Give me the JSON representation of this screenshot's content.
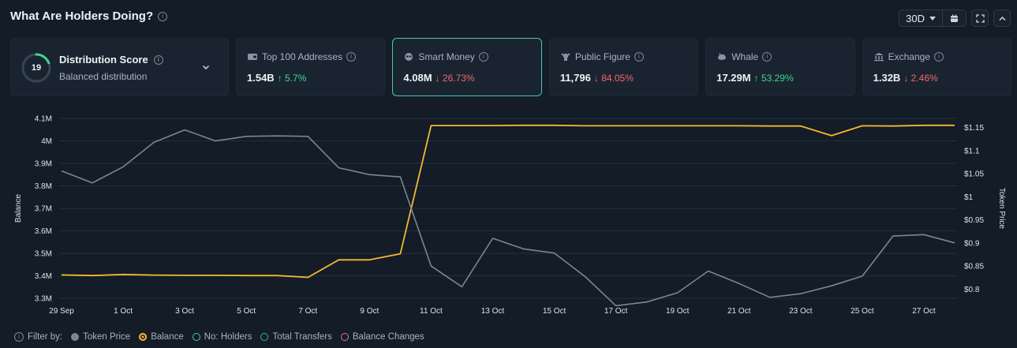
{
  "header": {
    "title": "What Are Holders Doing?",
    "range": "30D"
  },
  "score": {
    "value": "19",
    "title": "Distribution Score",
    "subtitle": "Balanced distribution",
    "fraction": 0.19
  },
  "metrics": [
    {
      "label": "Top 100 Addresses",
      "value": "1.54B",
      "change": "5.7%",
      "direction": "up",
      "icon": "wallet-icon"
    },
    {
      "label": "Smart Money",
      "value": "4.08M",
      "change": "26.73%",
      "direction": "down",
      "icon": "smart-money-icon"
    },
    {
      "label": "Public Figure",
      "value": "11,796",
      "change": "84.05%",
      "direction": "down",
      "icon": "public-figure-icon"
    },
    {
      "label": "Whale",
      "value": "17.29M",
      "change": "53.29%",
      "direction": "up",
      "icon": "whale-icon"
    },
    {
      "label": "Exchange",
      "value": "1.32B",
      "change": "2.46%",
      "direction": "down",
      "icon": "exchange-icon"
    }
  ],
  "colors": {
    "balance": "#f5b82e",
    "price": "#7c8592",
    "grid": "#233041",
    "accent": "#49c8b0",
    "up": "#3dd68c",
    "down": "#f0676b"
  },
  "chart_data": {
    "type": "line",
    "x": [
      "29 Sep",
      "30 Sep",
      "1 Oct",
      "2 Oct",
      "3 Oct",
      "4 Oct",
      "5 Oct",
      "6 Oct",
      "7 Oct",
      "8 Oct",
      "9 Oct",
      "10 Oct",
      "11 Oct",
      "12 Oct",
      "13 Oct",
      "14 Oct",
      "15 Oct",
      "16 Oct",
      "17 Oct",
      "18 Oct",
      "19 Oct",
      "20 Oct",
      "21 Oct",
      "22 Oct",
      "23 Oct",
      "24 Oct",
      "25 Oct",
      "26 Oct",
      "27 Oct",
      "28 Oct"
    ],
    "x_tick_labels": [
      "29 Sep",
      "1 Oct",
      "3 Oct",
      "5 Oct",
      "7 Oct",
      "9 Oct",
      "11 Oct",
      "13 Oct",
      "15 Oct",
      "17 Oct",
      "19 Oct",
      "21 Oct",
      "23 Oct",
      "25 Oct",
      "27 Oct"
    ],
    "y_left": {
      "label": "Balance",
      "range": [
        3.3,
        4.1
      ],
      "ticks": [
        "3.3M",
        "3.4M",
        "3.5M",
        "3.6M",
        "3.7M",
        "3.8M",
        "3.9M",
        "4M",
        "4.1M"
      ]
    },
    "y_right": {
      "label": "Token Price",
      "range": [
        0.78,
        1.17
      ],
      "ticks": [
        "$0.8",
        "$0.85",
        "$0.9",
        "$0.95",
        "$1",
        "$1.05",
        "$1.1",
        "$1.15"
      ]
    },
    "series": [
      {
        "name": "Balance",
        "axis": "left",
        "values": [
          3.404,
          3.401,
          3.406,
          3.403,
          3.402,
          3.402,
          3.401,
          3.401,
          3.393,
          3.471,
          3.471,
          3.498,
          4.068,
          4.068,
          4.068,
          4.069,
          4.069,
          4.067,
          4.067,
          4.067,
          4.067,
          4.067,
          4.067,
          4.066,
          4.066,
          4.023,
          4.067,
          4.066,
          4.069,
          4.069
        ]
      },
      {
        "name": "Token Price",
        "axis": "right",
        "values": [
          1.056,
          1.03,
          1.065,
          1.118,
          1.145,
          1.121,
          1.131,
          1.132,
          1.131,
          1.063,
          1.048,
          1.043,
          0.85,
          0.805,
          0.91,
          0.887,
          0.878,
          0.827,
          0.764,
          0.772,
          0.792,
          0.839,
          0.812,
          0.782,
          0.79,
          0.807,
          0.828,
          0.915,
          0.918,
          0.9
        ]
      }
    ]
  },
  "legend": {
    "filter_label": "Filter by:",
    "items": [
      {
        "label": "Token Price",
        "color": "#7c8592",
        "style": "filled"
      },
      {
        "label": "Balance",
        "color": "#f5b82e",
        "style": "ring"
      },
      {
        "label": "No: Holders",
        "color": "#49c8b0",
        "style": "hollow"
      },
      {
        "label": "Total Transfers",
        "color": "#2bb5a0",
        "style": "hollow"
      },
      {
        "label": "Balance Changes",
        "color": "#e86fb6",
        "style": "hollow"
      }
    ]
  }
}
